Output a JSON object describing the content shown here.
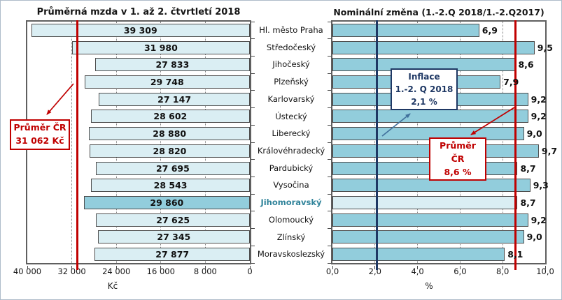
{
  "figure": {
    "titles": {
      "left": "Průměrná mzda v 1. až 2. čtvrtletí 2018",
      "right": "Nominální změna (1.-2.Q 2018/1.-2.Q2017)"
    },
    "axis_titles": {
      "left": "Kč",
      "right": "%"
    }
  },
  "regions": {
    "labels": [
      "Hl. město Praha",
      "Středočeský",
      "Jihočeský",
      "Plzeňský",
      "Karlovarský",
      "Ústecký",
      "Liberecký",
      "Královéhradecký",
      "Pardubický",
      "Vysočina",
      "Jihomoravský",
      "Olomoucký",
      "Zlínský",
      "Moravskoslezský"
    ],
    "highlight": "Jihomoravský",
    "highlight_index": 10,
    "highlight_color": "#31849B"
  },
  "chart_data": [
    {
      "type": "bar",
      "orientation": "horizontal",
      "direction": "right-to-left",
      "title": "Průměrná mzda v 1. až 2. čtvrtletí 2018",
      "categories": [
        "Hl. město Praha",
        "Středočeský",
        "Jihočeský",
        "Plzeňský",
        "Karlovarský",
        "Ústecký",
        "Liberecký",
        "Královéhradecký",
        "Pardubický",
        "Vysočina",
        "Jihomoravský",
        "Olomoucký",
        "Zlínský",
        "Moravskoslezský"
      ],
      "values": [
        39309,
        31980,
        27833,
        29748,
        27147,
        28602,
        28880,
        28820,
        27695,
        28543,
        29860,
        27625,
        27345,
        27877
      ],
      "value_labels": [
        "39 309",
        "31 980",
        "27 833",
        "29 748",
        "27 147",
        "28 602",
        "28 880",
        "28 820",
        "27 695",
        "28 543",
        "29 860",
        "27 625",
        "27 345",
        "27 877"
      ],
      "xlabel": "Kč",
      "xlim": [
        40000,
        0
      ],
      "tick_values": [
        40000,
        32000,
        24000,
        16000,
        8000,
        0
      ],
      "tick_labels": [
        "40 000",
        "32 000",
        "24 000",
        "16 000",
        "8 000",
        "0"
      ],
      "grid": "dotted",
      "highlight_index": 10,
      "bar_color": "#DAEEF3",
      "highlight_bar_color": "#92CDDC",
      "reference_lines": [
        {
          "value": 31062,
          "color": "#C00000",
          "label": "Průměr ČR 31 062 Kč"
        }
      ]
    },
    {
      "type": "bar",
      "orientation": "horizontal",
      "direction": "left-to-right",
      "title": "Nominální změna (1.-2.Q 2018/1.-2.Q2017)",
      "categories": [
        "Hl. město Praha",
        "Středočeský",
        "Jihočeský",
        "Plzeňský",
        "Karlovarský",
        "Ústecký",
        "Liberecký",
        "Královéhradecký",
        "Pardubický",
        "Vysočina",
        "Jihomoravský",
        "Olomoucký",
        "Zlínský",
        "Moravskoslezský"
      ],
      "values": [
        6.9,
        9.5,
        8.6,
        7.9,
        9.2,
        9.2,
        9.0,
        9.7,
        8.7,
        9.3,
        8.7,
        9.2,
        9.0,
        8.1
      ],
      "value_labels": [
        "6,9",
        "9,5",
        "8,6",
        "7,9",
        "9,2",
        "9,2",
        "9,0",
        "9,7",
        "8,7",
        "9,3",
        "8,7",
        "9,2",
        "9,0",
        "8,1"
      ],
      "xlabel": "%",
      "xlim": [
        0,
        10
      ],
      "tick_values": [
        0,
        2,
        4,
        6,
        8,
        10
      ],
      "tick_labels": [
        "0,0",
        "2,0",
        "4,0",
        "6,0",
        "8,0",
        "10,0"
      ],
      "grid": "dotted",
      "highlight_index": 10,
      "bar_color": "#92CDDC",
      "highlight_bar_color": "#DAEEF3",
      "reference_lines": [
        {
          "value": 2.1,
          "color": "#1F3864",
          "label": "Inflace 1.-2. Q 2018 2,1 %"
        },
        {
          "value": 8.6,
          "color": "#C00000",
          "label": "Průměr ČR 8,6 %"
        }
      ]
    }
  ],
  "annotations": {
    "average_left": {
      "lines": [
        "Průměr ČR",
        "31 062 Kč"
      ],
      "color": "#C00000"
    },
    "inflation": {
      "lines": [
        "Inflace",
        "1.-2. Q 2018",
        "2,1 %"
      ],
      "color": "#1F3864"
    },
    "average_right": {
      "lines": [
        "Průměr ČR",
        "8,6 %"
      ],
      "color": "#C00000"
    }
  },
  "colors": {
    "bar_light": "#DAEEF3",
    "bar_medium": "#92CDDC",
    "bar_border": "#4D4D4D",
    "plot_border": "#5F5F5F",
    "gridline": "#808080",
    "average_red": "#C00000",
    "inflation_blue": "#1F3864",
    "arrow_blue": "#41719C",
    "region_highlight": "#31849B"
  }
}
